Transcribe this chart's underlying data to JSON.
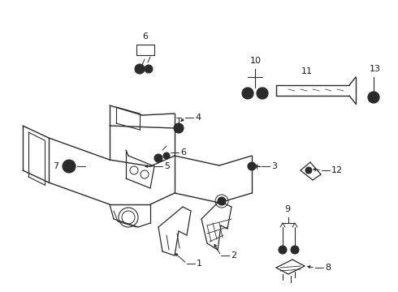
{
  "bg_color": "#ffffff",
  "line_color": "#2a2a2a",
  "text_color": "#1a1a1a",
  "fig_width": 4.9,
  "fig_height": 3.6,
  "dpi": 100
}
